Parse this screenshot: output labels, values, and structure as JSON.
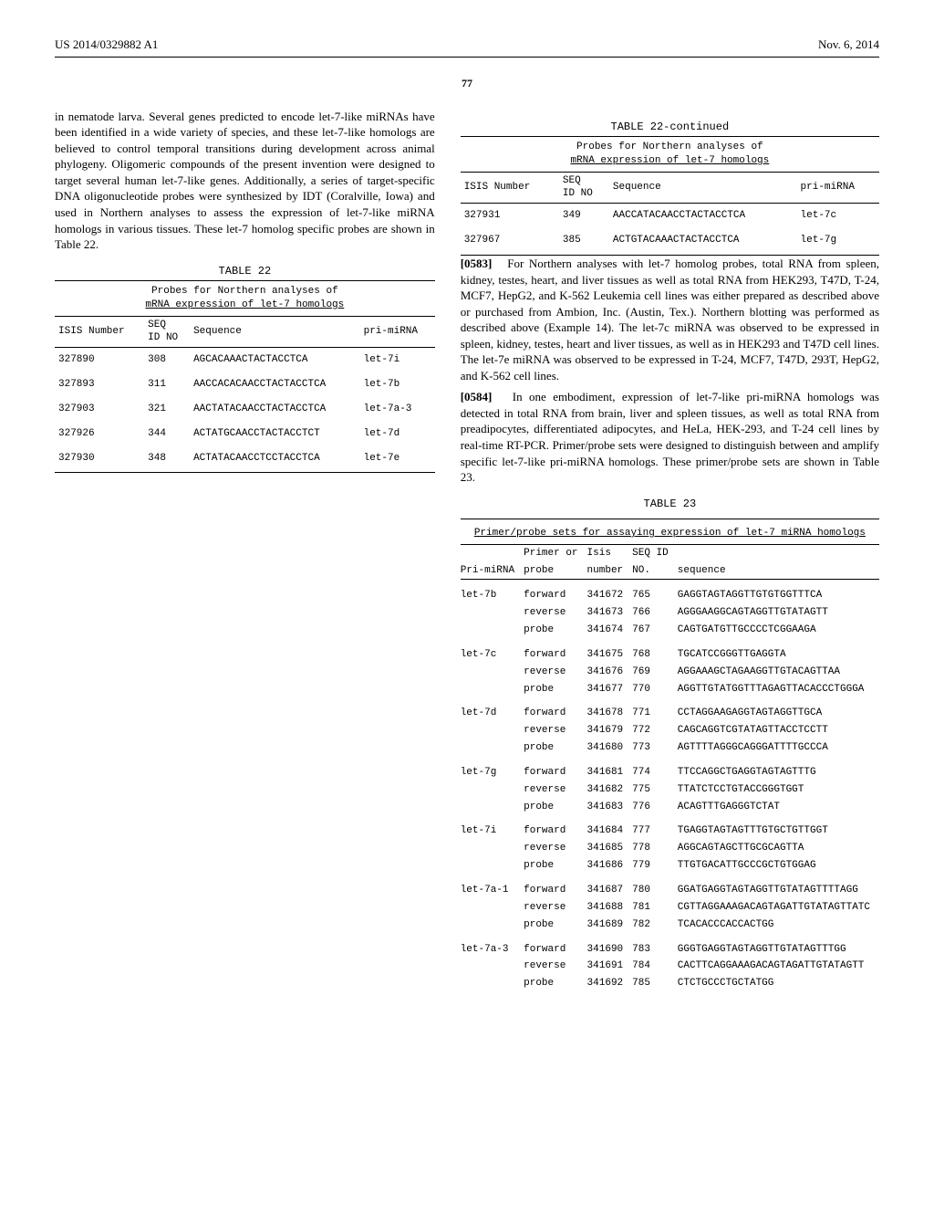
{
  "header": {
    "pubno": "US 2014/0329882 A1",
    "date": "Nov. 6, 2014",
    "pagenum": "77"
  },
  "left": {
    "p1": "in nematode larva. Several genes predicted to encode let-7-like miRNAs have been identified in a wide variety of species, and these let-7-like homologs are believed to control temporal transitions during development across animal phylogeny. Oligomeric compounds of the present invention were designed to target several human let-7-like genes. Additionally, a series of target-specific DNA oligonucleotide probes were synthesized by IDT (Coralville, Iowa) and used in Northern analyses to assess the expression of let-7-like miRNA homologs in various tissues. These let-7 homolog specific probes are shown in Table 22.",
    "t22": {
      "title": "TABLE 22",
      "caption1": "Probes for Northern analyses of",
      "caption2": "mRNA expression of let-7 homologs",
      "h_isis": "ISIS Number",
      "h_seq": "SEQ",
      "h_idno": "ID NO",
      "h_sequence": "Sequence",
      "h_pri": "pri-miRNA",
      "rows": [
        {
          "isis": "327890",
          "idno": "308",
          "seq": "AGCACAAACTACTACCTCA",
          "pri": "let-7i"
        },
        {
          "isis": "327893",
          "idno": "311",
          "seq": "AACCACACAACCTACTACCTCA",
          "pri": "let-7b"
        },
        {
          "isis": "327903",
          "idno": "321",
          "seq": "AACTATACAACCTACTACCTCA",
          "pri": "let-7a-3"
        },
        {
          "isis": "327926",
          "idno": "344",
          "seq": "ACTATGCAACCTACTACCTCT",
          "pri": "let-7d"
        },
        {
          "isis": "327930",
          "idno": "348",
          "seq": "ACTATACAACCTCCTACCTCA",
          "pri": "let-7e"
        }
      ]
    }
  },
  "right": {
    "t22b": {
      "title": "TABLE 22-continued",
      "caption1": "Probes for Northern analyses of",
      "caption2": "mRNA expression of let-7 homologs",
      "h_isis": "ISIS Number",
      "h_seq": "SEQ",
      "h_idno": "ID NO",
      "h_sequence": "Sequence",
      "h_pri": "pri-miRNA",
      "rows": [
        {
          "isis": "327931",
          "idno": "349",
          "seq": "AACCATACAACCTACTACCTCA",
          "pri": "let-7c"
        },
        {
          "isis": "327967",
          "idno": "385",
          "seq": "ACTGTACAAACTACTACCTCA",
          "pri": "let-7g"
        }
      ]
    },
    "p2_num": "[0583]",
    "p2": "For Northern analyses with let-7 homolog probes, total RNA from spleen, kidney, testes, heart, and liver tissues as well as total RNA from HEK293, T47D, T-24, MCF7, HepG2, and K-562 Leukemia cell lines was either prepared as described above or purchased from Ambion, Inc. (Austin, Tex.). Northern blotting was performed as described above (Example 14). The let-7c miRNA was observed to be expressed in spleen, kidney, testes, heart and liver tissues, as well as in HEK293 and T47D cell lines. The let-7e miRNA was observed to be expressed in T-24, MCF7, T47D, 293T, HepG2, and K-562 cell lines.",
    "p3_num": "[0584]",
    "p3": "In one embodiment, expression of let-7-like pri-miRNA homologs was detected in total RNA from brain, liver and spleen tissues, as well as total RNA from preadipocytes, differentiated adipocytes, and HeLa, HEK-293, and T-24 cell lines by real-time RT-PCR. Primer/probe sets were designed to distinguish between and amplify specific let-7-like pri-miRNA homologs. These primer/probe sets are shown in Table 23."
  },
  "t23": {
    "title": "TABLE 23",
    "caption": "Primer/probe sets for assaying expression of let-7 miRNA homologs",
    "h_pri": "Pri-miRNA",
    "h_pp": "Primer or",
    "h_pp2": "probe",
    "h_isis": "Isis",
    "h_isis2": "number",
    "h_seqid": "SEQ ID",
    "h_seqid2": "NO.",
    "h_seq": "sequence",
    "groups": [
      {
        "pri": "let-7b",
        "rows": [
          {
            "pp": "forward",
            "isis": "341672",
            "id": "765",
            "seq": "GAGGTAGTAGGTTGTGTGGTTTCA"
          },
          {
            "pp": "reverse",
            "isis": "341673",
            "id": "766",
            "seq": "AGGGAAGGCAGTAGGTTGTATAGTT"
          },
          {
            "pp": "probe",
            "isis": "341674",
            "id": "767",
            "seq": "CAGTGATGTTGCCCCTCGGAAGA"
          }
        ]
      },
      {
        "pri": "let-7c",
        "rows": [
          {
            "pp": "forward",
            "isis": "341675",
            "id": "768",
            "seq": "TGCATCCGGGTTGAGGTA"
          },
          {
            "pp": "reverse",
            "isis": "341676",
            "id": "769",
            "seq": "AGGAAAGCTAGAAGGTTGTACAGTTAA"
          },
          {
            "pp": "probe",
            "isis": "341677",
            "id": "770",
            "seq": "AGGTTGTATGGTTTAGAGTTACACCCTGGGA"
          }
        ]
      },
      {
        "pri": "let-7d",
        "rows": [
          {
            "pp": "forward",
            "isis": "341678",
            "id": "771",
            "seq": "CCTAGGAAGAGGTAGTAGGTTGCA"
          },
          {
            "pp": "reverse",
            "isis": "341679",
            "id": "772",
            "seq": "CAGCAGGTCGTATAGTTACCTCCTT"
          },
          {
            "pp": "probe",
            "isis": "341680",
            "id": "773",
            "seq": "AGTTTTAGGGCAGGGATTTTGCCCA"
          }
        ]
      },
      {
        "pri": "let-7g",
        "rows": [
          {
            "pp": "forward",
            "isis": "341681",
            "id": "774",
            "seq": "TTCCAGGCTGAGGTAGTAGTTTG"
          },
          {
            "pp": "reverse",
            "isis": "341682",
            "id": "775",
            "seq": "TTATCTCCTGTACCGGGTGGT"
          },
          {
            "pp": "probe",
            "isis": "341683",
            "id": "776",
            "seq": "ACAGTTTGAGGGTCTAT"
          }
        ]
      },
      {
        "pri": "let-7i",
        "rows": [
          {
            "pp": "forward",
            "isis": "341684",
            "id": "777",
            "seq": "TGAGGTAGTAGTTTGTGCTGTTGGT"
          },
          {
            "pp": "reverse",
            "isis": "341685",
            "id": "778",
            "seq": "AGGCAGTAGCTTGCGCAGTTA"
          },
          {
            "pp": "probe",
            "isis": "341686",
            "id": "779",
            "seq": "TTGTGACATTGCCCGCTGTGGAG"
          }
        ]
      },
      {
        "pri": "let-7a-1",
        "rows": [
          {
            "pp": "forward",
            "isis": "341687",
            "id": "780",
            "seq": "GGATGAGGTAGTAGGTTGTATAGTTTTAGG"
          },
          {
            "pp": "reverse",
            "isis": "341688",
            "id": "781",
            "seq": "CGTTAGGAAAGACAGTAGATTGTATAGTTATC"
          },
          {
            "pp": "probe",
            "isis": "341689",
            "id": "782",
            "seq": "TCACACCCACCACTGG"
          }
        ]
      },
      {
        "pri": "let-7a-3",
        "rows": [
          {
            "pp": "forward",
            "isis": "341690",
            "id": "783",
            "seq": "GGGTGAGGTAGTAGGTTGTATAGTTTGG"
          },
          {
            "pp": "reverse",
            "isis": "341691",
            "id": "784",
            "seq": "CACTTCAGGAAAGACAGTAGATTGTATAGTT"
          },
          {
            "pp": "probe",
            "isis": "341692",
            "id": "785",
            "seq": "CTCTGCCCTGCTATGG"
          }
        ]
      }
    ]
  }
}
